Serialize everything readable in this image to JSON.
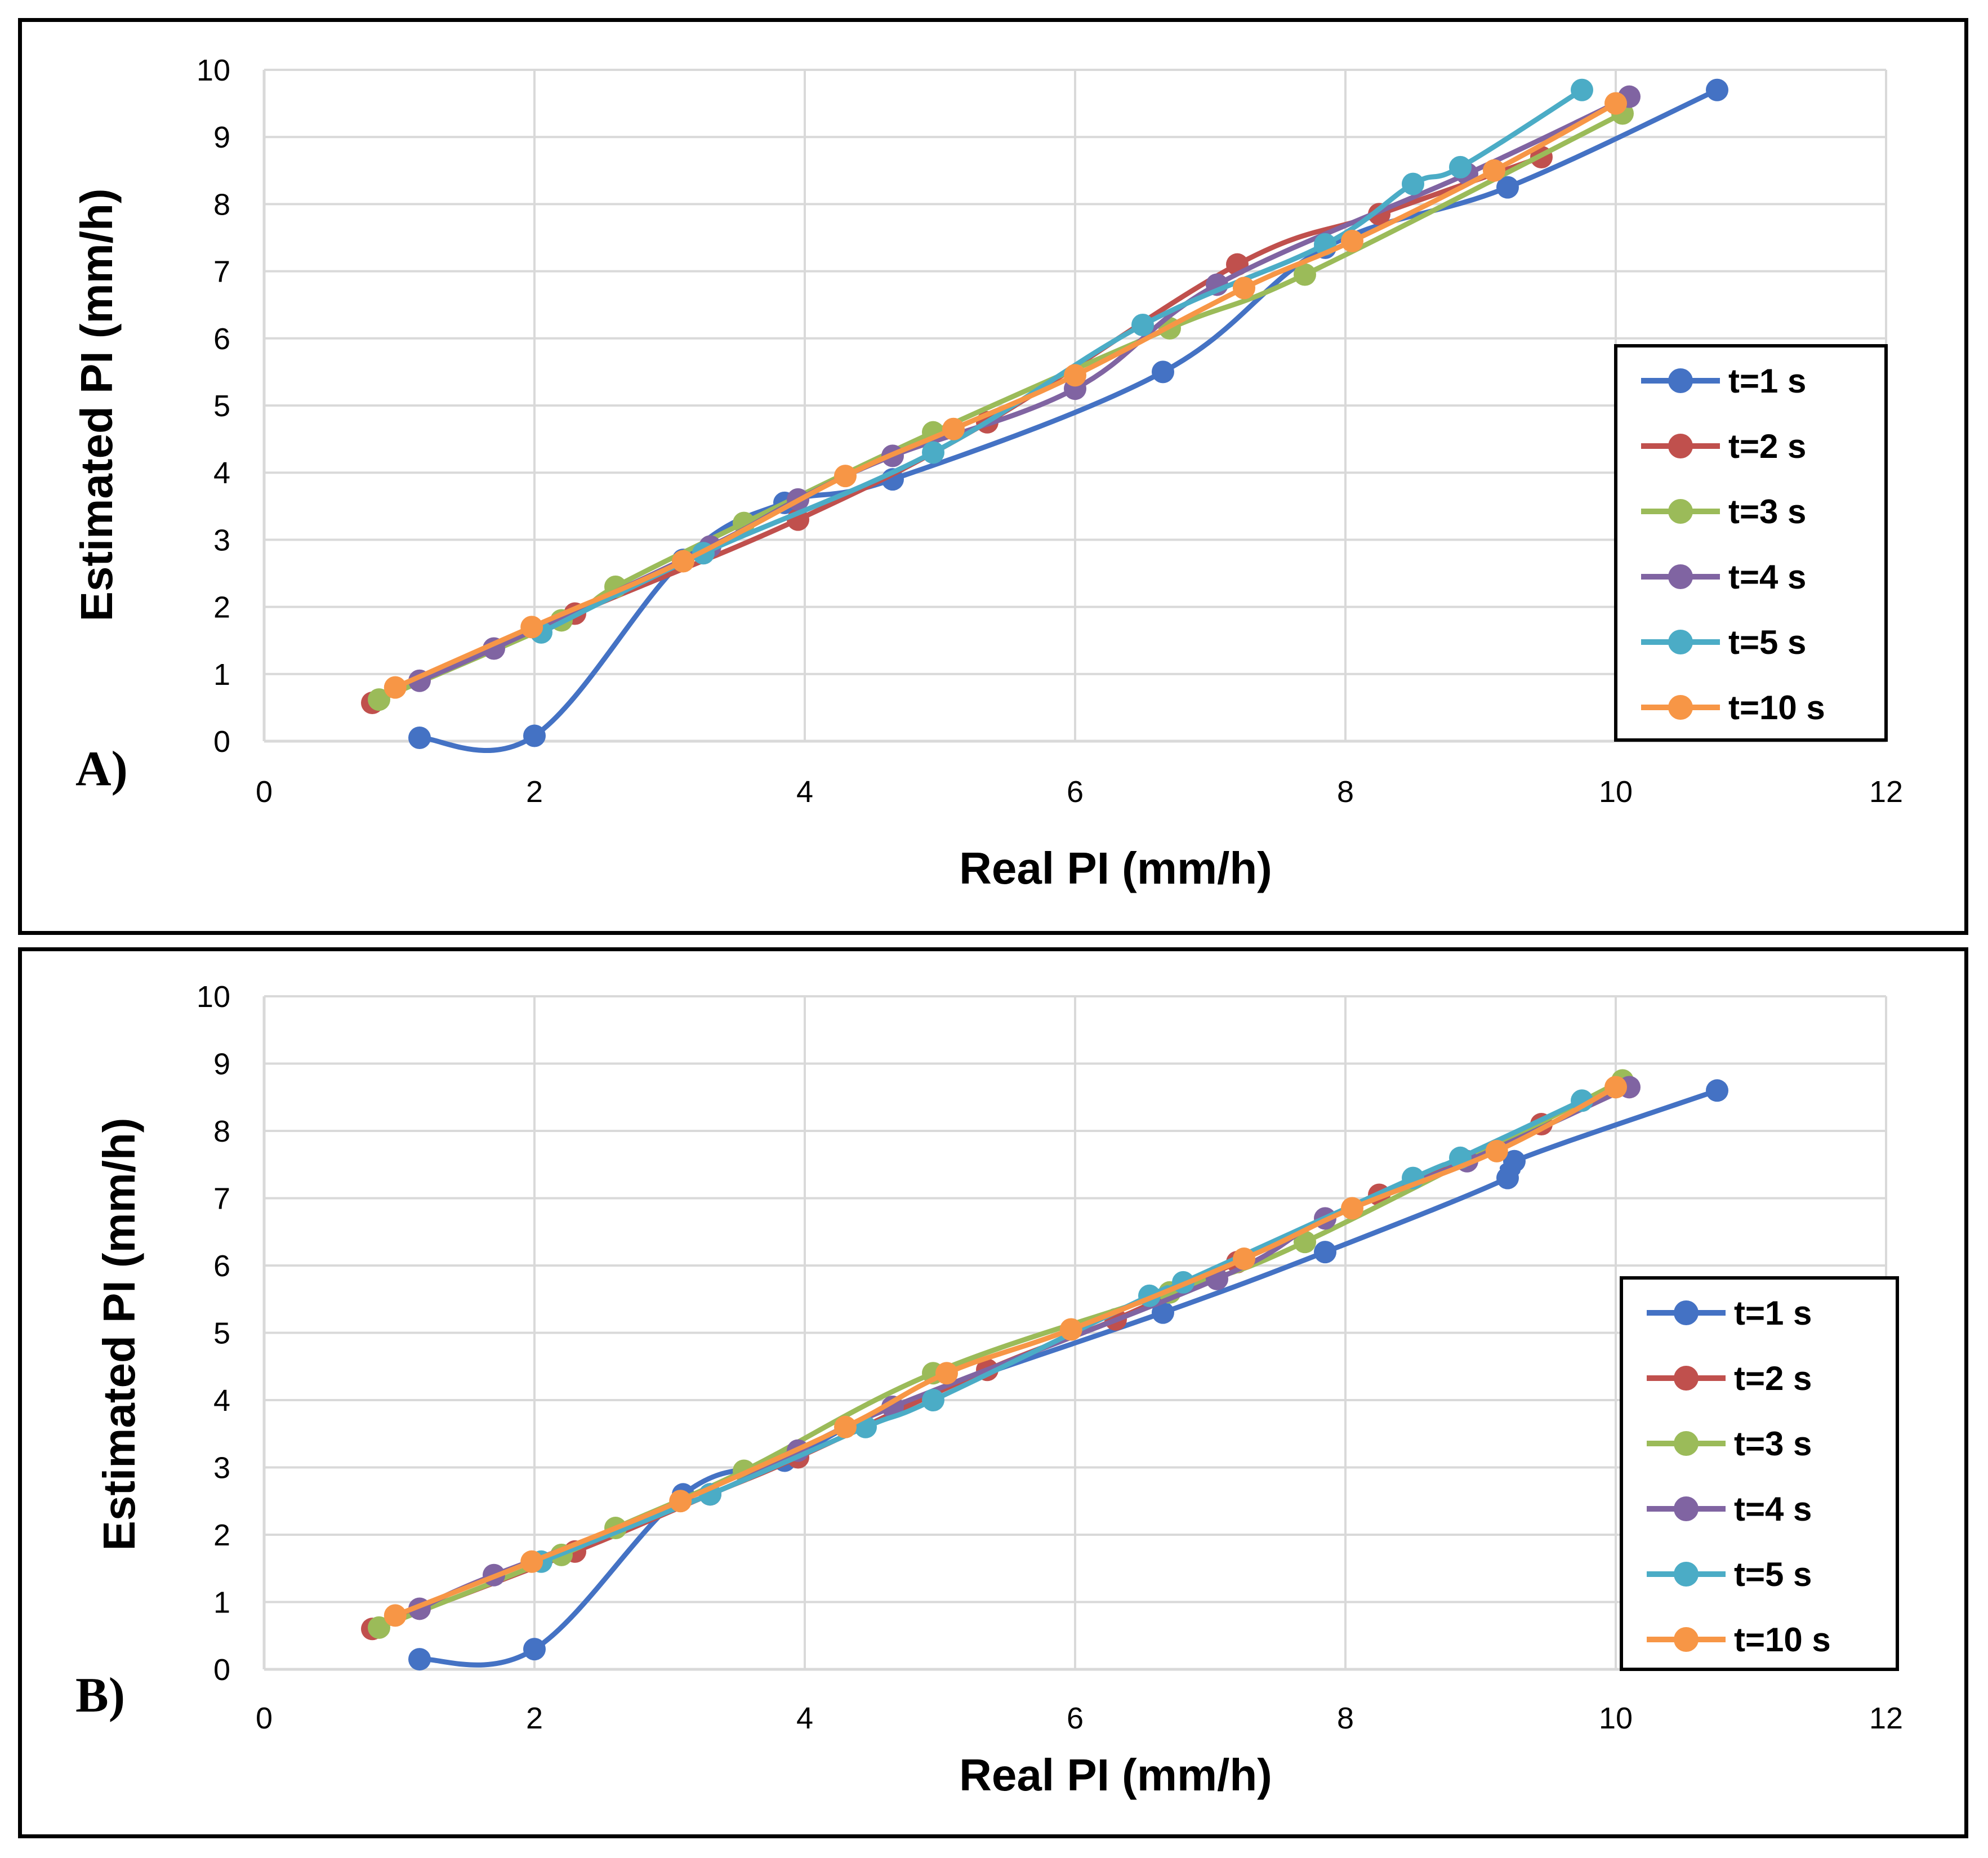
{
  "colors": {
    "t1": "#4472C4",
    "t2": "#C0504D",
    "t3": "#9BBB59",
    "t4": "#8064A2",
    "t5": "#4BACC6",
    "t10": "#F79646",
    "grid": "#D9D9D9"
  },
  "chart_data": [
    {
      "type": "line",
      "panel_label": "A)",
      "xlabel": "Real PI (mm/h)",
      "ylabel": "Estimated PI (mm/h)",
      "xlim": [
        0,
        12
      ],
      "ylim": [
        0,
        10
      ],
      "xticks": [
        "0",
        "2",
        "4",
        "6",
        "8",
        "10",
        "12"
      ],
      "yticks": [
        "0",
        "1",
        "2",
        "3",
        "4",
        "5",
        "6",
        "7",
        "8",
        "9",
        "10"
      ],
      "grid": true,
      "legend_position": "right",
      "series": [
        {
          "name": "t=1 s",
          "color_key": "t1",
          "x": [
            1.15,
            2.0,
            3.1,
            3.85,
            4.65,
            6.65,
            7.85,
            9.2,
            10.75
          ],
          "y": [
            0.05,
            0.08,
            2.7,
            3.55,
            3.9,
            5.5,
            7.35,
            8.25,
            9.7
          ]
        },
        {
          "name": "t=2 s",
          "color_key": "t2",
          "x": [
            0.8,
            2.3,
            3.95,
            5.35,
            7.2,
            8.25,
            9.45
          ],
          "y": [
            0.57,
            1.9,
            3.3,
            4.75,
            7.1,
            7.85,
            8.7
          ]
        },
        {
          "name": "t=3 s",
          "color_key": "t3",
          "x": [
            0.85,
            2.2,
            2.6,
            3.55,
            4.95,
            6.7,
            7.7,
            10.05
          ],
          "y": [
            0.62,
            1.8,
            2.3,
            3.25,
            4.6,
            6.15,
            6.95,
            9.35
          ]
        },
        {
          "name": "t=4 s",
          "color_key": "t4",
          "x": [
            1.15,
            1.7,
            3.3,
            3.95,
            4.65,
            6.0,
            7.05,
            8.9,
            10.1
          ],
          "y": [
            0.9,
            1.38,
            2.9,
            3.6,
            4.25,
            5.25,
            6.8,
            8.45,
            9.6
          ]
        },
        {
          "name": "t=5 s",
          "color_key": "t5",
          "x": [
            2.05,
            3.25,
            4.95,
            6.5,
            7.85,
            8.5,
            8.85,
            9.75
          ],
          "y": [
            1.62,
            2.8,
            4.3,
            6.2,
            7.4,
            8.3,
            8.55,
            9.7
          ]
        },
        {
          "name": "t=10 s",
          "color_key": "t10",
          "x": [
            0.97,
            1.98,
            3.1,
            4.3,
            5.1,
            6.0,
            7.25,
            8.05,
            9.1,
            10.0
          ],
          "y": [
            0.8,
            1.7,
            2.68,
            3.95,
            4.65,
            5.45,
            6.75,
            7.45,
            8.5,
            9.5
          ]
        }
      ]
    },
    {
      "type": "line",
      "panel_label": "B)",
      "xlabel": "Real PI (mm/h)",
      "ylabel": "Estimated PI (mm/h)",
      "xlim": [
        0,
        12
      ],
      "ylim": [
        0,
        10
      ],
      "xticks": [
        "0",
        "2",
        "4",
        "6",
        "8",
        "10",
        "12"
      ],
      "yticks": [
        "0",
        "1",
        "2",
        "3",
        "4",
        "5",
        "6",
        "7",
        "8",
        "9",
        "10"
      ],
      "grid": true,
      "legend_position": "right",
      "series": [
        {
          "name": "t=1 s",
          "color_key": "t1",
          "x": [
            1.15,
            2.0,
            3.1,
            3.85,
            4.65,
            6.65,
            7.85,
            9.2,
            9.25,
            10.75
          ],
          "y": [
            0.15,
            0.3,
            2.6,
            3.1,
            3.9,
            5.3,
            6.2,
            7.3,
            7.55,
            8.6
          ]
        },
        {
          "name": "t=2 s",
          "color_key": "t2",
          "x": [
            0.8,
            2.3,
            3.3,
            3.95,
            5.35,
            6.3,
            7.2,
            8.25,
            9.45
          ],
          "y": [
            0.6,
            1.75,
            2.6,
            3.15,
            4.45,
            5.2,
            6.05,
            7.05,
            8.1
          ]
        },
        {
          "name": "t=3 s",
          "color_key": "t3",
          "x": [
            0.85,
            2.2,
            2.6,
            3.55,
            4.95,
            6.7,
            7.7,
            10.05
          ],
          "y": [
            0.62,
            1.7,
            2.1,
            2.95,
            4.4,
            5.6,
            6.35,
            8.75
          ]
        },
        {
          "name": "t=4 s",
          "color_key": "t4",
          "x": [
            1.15,
            1.7,
            3.3,
            3.95,
            4.65,
            7.05,
            7.85,
            8.9,
            10.1
          ],
          "y": [
            0.9,
            1.4,
            2.6,
            3.25,
            3.9,
            5.8,
            6.7,
            7.55,
            8.65
          ]
        },
        {
          "name": "t=5 s",
          "color_key": "t5",
          "x": [
            2.05,
            3.3,
            4.45,
            4.95,
            6.55,
            6.8,
            8.5,
            8.85,
            9.75
          ],
          "y": [
            1.6,
            2.6,
            3.6,
            4.0,
            5.55,
            5.75,
            7.3,
            7.6,
            8.45
          ]
        },
        {
          "name": "t=10 s",
          "color_key": "t10",
          "x": [
            0.97,
            1.98,
            3.08,
            4.3,
            5.05,
            5.97,
            7.25,
            8.05,
            9.12,
            10.0
          ],
          "y": [
            0.8,
            1.6,
            2.5,
            3.6,
            4.4,
            5.05,
            6.1,
            6.85,
            7.7,
            8.65
          ]
        }
      ]
    }
  ]
}
